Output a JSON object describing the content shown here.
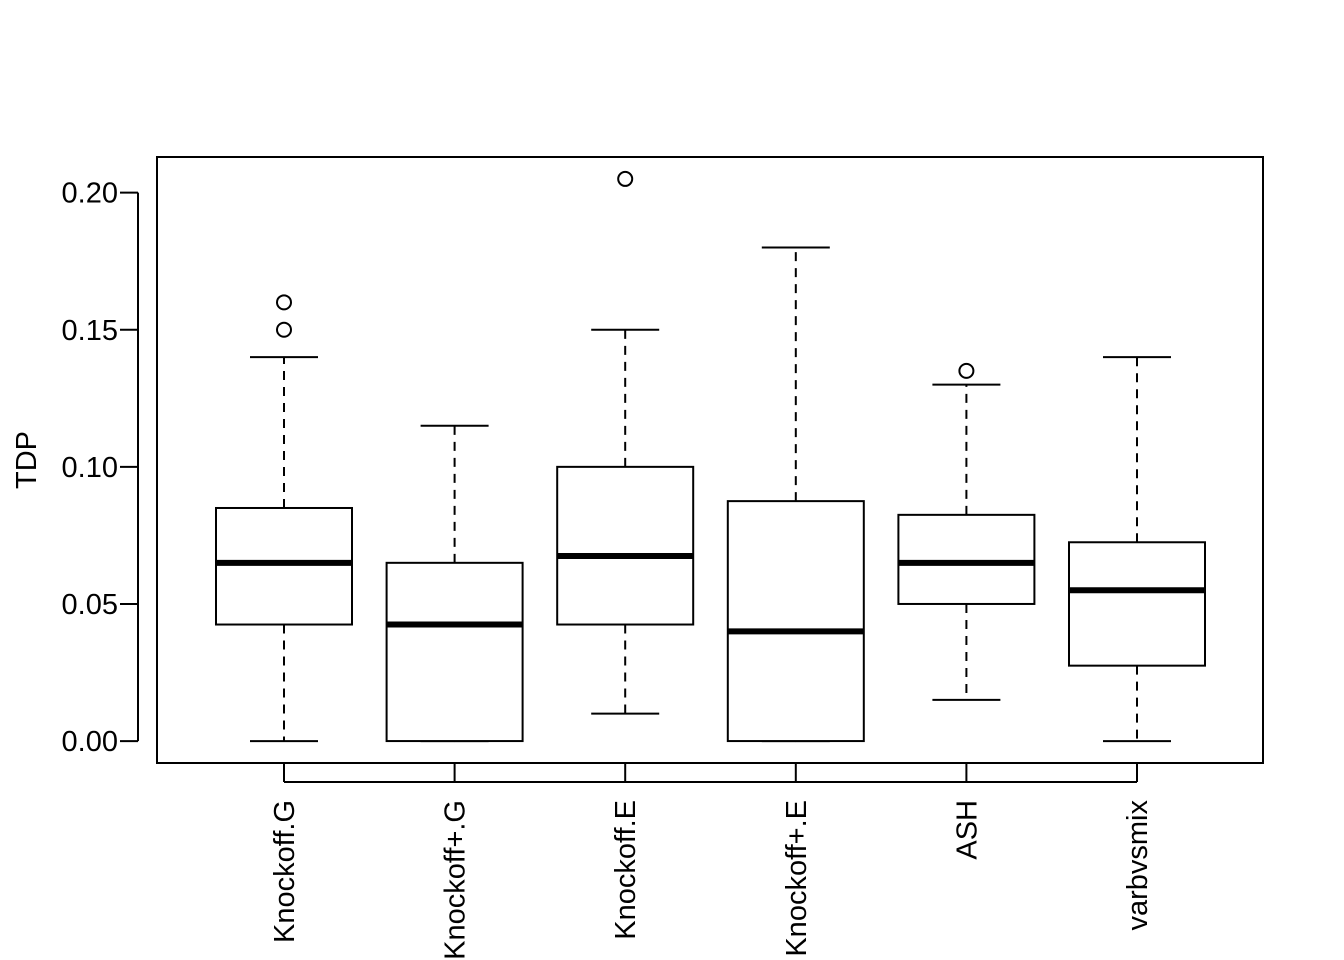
{
  "chart_data": {
    "type": "boxplot",
    "ylabel": "TDP",
    "ylim": [
      -0.008,
      0.213
    ],
    "yticks": [
      0.0,
      0.05,
      0.1,
      0.15,
      0.2
    ],
    "ytick_labels": [
      "0.00",
      "0.05",
      "0.10",
      "0.15",
      "0.20"
    ],
    "categories": [
      "Knockoff.G",
      "Knockoff+.G",
      "Knockoff.E",
      "Knockoff+.E",
      "ASH",
      "varbvsmix"
    ],
    "boxes": [
      {
        "whisker_low": 0.0,
        "q1": 0.0425,
        "median": 0.065,
        "q3": 0.085,
        "whisker_high": 0.14,
        "outliers": [
          0.15,
          0.16
        ]
      },
      {
        "whisker_low": 0.0,
        "q1": 0.0,
        "median": 0.0425,
        "q3": 0.065,
        "whisker_high": 0.115,
        "outliers": []
      },
      {
        "whisker_low": 0.01,
        "q1": 0.0425,
        "median": 0.0675,
        "q3": 0.1,
        "whisker_high": 0.15,
        "outliers": [
          0.205
        ]
      },
      {
        "whisker_low": 0.0,
        "q1": 0.0,
        "median": 0.04,
        "q3": 0.0875,
        "whisker_high": 0.18,
        "outliers": []
      },
      {
        "whisker_low": 0.015,
        "q1": 0.05,
        "median": 0.065,
        "q3": 0.0825,
        "whisker_high": 0.13,
        "outliers": [
          0.135
        ]
      },
      {
        "whisker_low": 0.0,
        "q1": 0.0275,
        "median": 0.055,
        "q3": 0.0725,
        "whisker_high": 0.14,
        "outliers": []
      }
    ]
  }
}
